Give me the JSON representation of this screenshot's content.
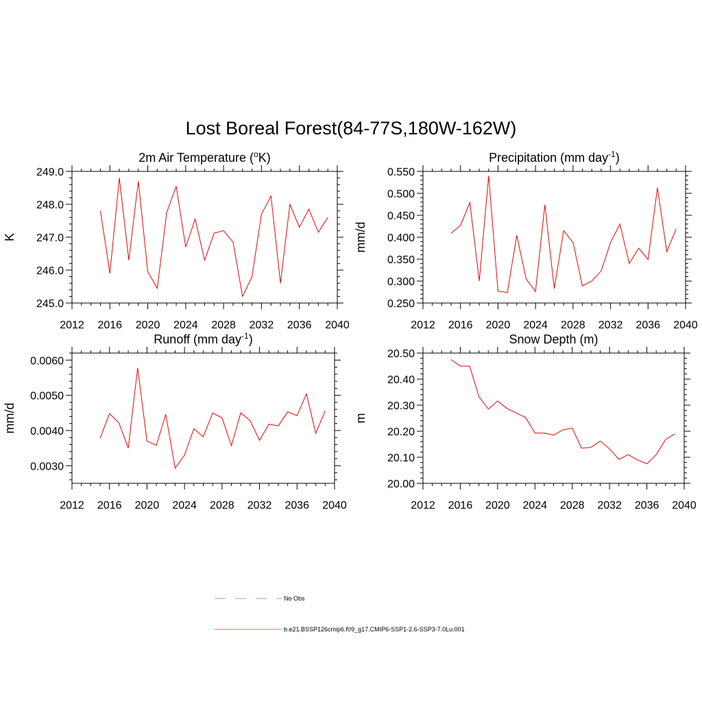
{
  "figure": {
    "title": "Lost Boreal Forest(84-77S,180W-162W)"
  },
  "legend": {
    "entries": [
      {
        "label": "No Obs",
        "style": "dashed",
        "color": "#9999dd"
      },
      {
        "label": "b.e21.BSSP126cmip6.f09_g17.CMIP6-SSP1-2.6-SSP3-7.0Lu.001",
        "style": "solid",
        "color": "#ff6666"
      }
    ]
  },
  "chart_data": [
    {
      "type": "line",
      "title": "2m Air Temperature (°K)",
      "title_parts": {
        "pre": "2m Air Temperature (",
        "sup": "o",
        "post": "K)"
      },
      "xlabel": "",
      "ylabel": "K",
      "xlim": [
        2012,
        2040
      ],
      "xticks": [
        2012,
        2016,
        2020,
        2024,
        2028,
        2032,
        2036,
        2040
      ],
      "ylim": [
        245.0,
        249.0
      ],
      "yticks": [
        "245.0",
        "246.0",
        "247.0",
        "248.0",
        "249.0"
      ],
      "color": "#ee0000",
      "x": [
        2015,
        2016,
        2017,
        2018,
        2019,
        2020,
        2021,
        2022,
        2023,
        2024,
        2025,
        2026,
        2027,
        2028,
        2029,
        2030,
        2031,
        2032,
        2033,
        2034,
        2035,
        2036,
        2037,
        2038,
        2039
      ],
      "y": [
        247.8,
        245.9,
        248.8,
        246.3,
        248.7,
        245.95,
        245.45,
        247.75,
        248.55,
        246.7,
        247.55,
        246.3,
        247.12,
        247.2,
        246.85,
        245.2,
        245.8,
        247.7,
        248.25,
        245.6,
        248.0,
        247.3,
        247.85,
        247.15,
        247.6
      ]
    },
    {
      "type": "line",
      "title": "Precipitation (mm day-1)",
      "title_parts": {
        "pre": "Precipitation (mm day",
        "sup": "-1",
        "post": ")"
      },
      "xlabel": "",
      "ylabel": "mm/d",
      "xlim": [
        2012,
        2040
      ],
      "xticks": [
        2012,
        2016,
        2020,
        2024,
        2028,
        2032,
        2036,
        2040
      ],
      "ylim": [
        0.25,
        0.55
      ],
      "yticks": [
        "0.250",
        "0.300",
        "0.350",
        "0.400",
        "0.450",
        "0.500",
        "0.550"
      ],
      "color": "#ee0000",
      "x": [
        2015,
        2016,
        2017,
        2018,
        2019,
        2020,
        2021,
        2022,
        2023,
        2024,
        2025,
        2026,
        2027,
        2028,
        2029,
        2030,
        2031,
        2032,
        2033,
        2034,
        2035,
        2036,
        2037,
        2038,
        2039
      ],
      "y": [
        0.409,
        0.427,
        0.479,
        0.3,
        0.54,
        0.277,
        0.274,
        0.404,
        0.305,
        0.276,
        0.474,
        0.283,
        0.415,
        0.388,
        0.289,
        0.3,
        0.323,
        0.388,
        0.43,
        0.34,
        0.375,
        0.349,
        0.513,
        0.367,
        0.419
      ]
    },
    {
      "type": "line",
      "title": "Runoff (mm day-1)",
      "title_parts": {
        "pre": "Runoff (mm day",
        "sup": "-1",
        "post": ")"
      },
      "xlabel": "",
      "ylabel": "mm/d",
      "xlim": [
        2012,
        2040
      ],
      "xticks": [
        2012,
        2016,
        2020,
        2024,
        2028,
        2032,
        2036,
        2040
      ],
      "ylim": [
        0.0025,
        0.0062
      ],
      "yticks": [
        "0.0030",
        "0.0040",
        "0.0050",
        "0.0060"
      ],
      "color": "#ee0000",
      "x": [
        2015,
        2016,
        2017,
        2018,
        2019,
        2020,
        2021,
        2022,
        2023,
        2024,
        2025,
        2026,
        2027,
        2028,
        2029,
        2030,
        2031,
        2032,
        2033,
        2034,
        2035,
        2036,
        2037,
        2038,
        2039
      ],
      "y": [
        0.00378,
        0.00448,
        0.00422,
        0.0035,
        0.00578,
        0.0037,
        0.00358,
        0.00446,
        0.00293,
        0.0033,
        0.00405,
        0.00382,
        0.0045,
        0.00436,
        0.00357,
        0.0045,
        0.00428,
        0.00372,
        0.00418,
        0.00413,
        0.00453,
        0.00442,
        0.00504,
        0.00392,
        0.00456
      ]
    },
    {
      "type": "line",
      "title": "Snow Depth (m)",
      "title_parts": {
        "pre": "Snow Depth (m)",
        "sup": "",
        "post": ""
      },
      "xlabel": "",
      "ylabel": "m",
      "xlim": [
        2012,
        2040
      ],
      "xticks": [
        2012,
        2016,
        2020,
        2024,
        2028,
        2032,
        2036,
        2040
      ],
      "ylim": [
        20.0,
        20.5
      ],
      "yticks": [
        "20.00",
        "20.10",
        "20.20",
        "20.30",
        "20.40",
        "20.50"
      ],
      "color": "#ee0000",
      "x": [
        2015,
        2016,
        2017,
        2018,
        2019,
        2020,
        2021,
        2022,
        2023,
        2024,
        2025,
        2026,
        2027,
        2028,
        2029,
        2030,
        2031,
        2032,
        2033,
        2034,
        2035,
        2036,
        2037,
        2038,
        2039
      ],
      "y": [
        20.475,
        20.45,
        20.45,
        20.333,
        20.285,
        20.316,
        20.287,
        20.27,
        20.253,
        20.193,
        20.193,
        20.185,
        20.205,
        20.212,
        20.135,
        20.138,
        20.162,
        20.132,
        20.092,
        20.11,
        20.09,
        20.075,
        20.11,
        20.168,
        20.19
      ]
    }
  ]
}
